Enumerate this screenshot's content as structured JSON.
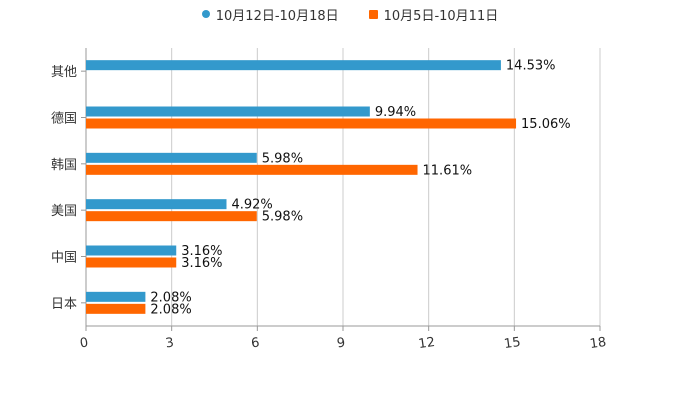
{
  "chart_data": {
    "type": "bar",
    "orientation": "horizontal",
    "categories": [
      "其他",
      "德国",
      "韩国",
      "美国",
      "中国",
      "日本"
    ],
    "series": [
      {
        "name": "10月12日-10月18日",
        "color": "#3399cc",
        "marker": "circle",
        "values": [
          14.53,
          9.94,
          5.98,
          4.92,
          3.16,
          2.08
        ],
        "labels": [
          "14.53%",
          "9.94%",
          "5.98%",
          "4.92%",
          "3.16%",
          "2.08%"
        ]
      },
      {
        "name": "10月5日-10月11日",
        "color": "#ff6600",
        "marker": "square",
        "values": [
          null,
          15.06,
          11.61,
          5.98,
          3.16,
          2.08
        ],
        "labels": [
          null,
          "15.06%",
          "11.61%",
          "5.98%",
          "3.16%",
          "2.08%"
        ]
      }
    ],
    "xlim": [
      0,
      18
    ],
    "xticks": [
      "0",
      "3",
      "6",
      "9",
      "12",
      "15",
      "18"
    ],
    "grid": true,
    "legend": "top-center",
    "title": "",
    "xlabel": "",
    "ylabel": ""
  }
}
